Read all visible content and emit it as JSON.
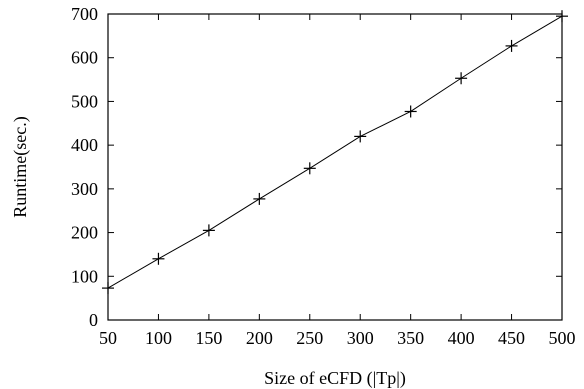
{
  "chart_data": {
    "type": "line",
    "xlabel": "Size of eCFD (|Tp|)",
    "ylabel": "Runtime(sec.)",
    "xlim": [
      50,
      500
    ],
    "ylim": [
      0,
      700
    ],
    "xticks": [
      50,
      100,
      150,
      200,
      250,
      300,
      350,
      400,
      450,
      500
    ],
    "yticks": [
      0,
      100,
      200,
      300,
      400,
      500,
      600,
      700
    ],
    "grid": false,
    "series": [
      {
        "x": [
          50,
          100,
          150,
          200,
          250,
          300,
          350,
          400,
          450,
          500
        ],
        "values": [
          73,
          140,
          205,
          277,
          347,
          420,
          477,
          553,
          627,
          695
        ],
        "marker": "plus",
        "color": "#000000"
      }
    ]
  }
}
